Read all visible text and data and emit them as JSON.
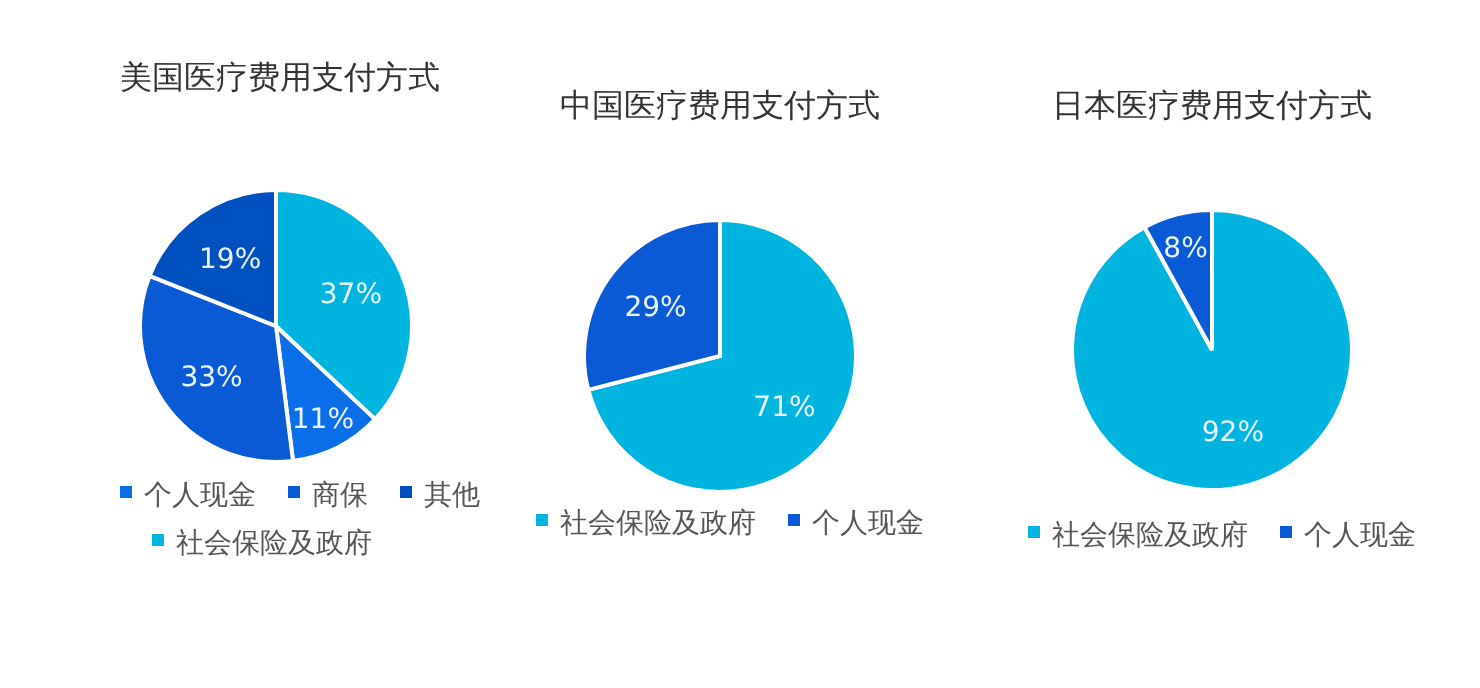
{
  "chart_data": [
    {
      "type": "pie",
      "title": "美国医疗费用支付方式",
      "categories": [
        "个人现金",
        "商保",
        "其他",
        "社会保险及政府"
      ],
      "values": [
        11,
        33,
        19,
        37
      ],
      "value_labels": [
        "11%",
        "33%",
        "19%",
        "37%"
      ],
      "colors": [
        "#0a6ee8",
        "#0a5ad6",
        "#0050c0",
        "#00b4e0"
      ],
      "legend": "bottom"
    },
    {
      "type": "pie",
      "title": "中国医疗费用支付方式",
      "categories": [
        "社会保险及政府",
        "个人现金"
      ],
      "values": [
        71,
        29
      ],
      "value_labels": [
        "71%",
        "29%"
      ],
      "colors": [
        "#00b4e0",
        "#0a5ad6"
      ],
      "legend": "bottom"
    },
    {
      "type": "pie",
      "title": "日本医疗费用支付方式",
      "categories": [
        "社会保险及政府",
        "个人现金"
      ],
      "values": [
        92,
        8
      ],
      "value_labels": [
        "92%",
        "8%"
      ],
      "colors": [
        "#00b4e0",
        "#0a5ad6"
      ],
      "legend": "bottom"
    }
  ]
}
